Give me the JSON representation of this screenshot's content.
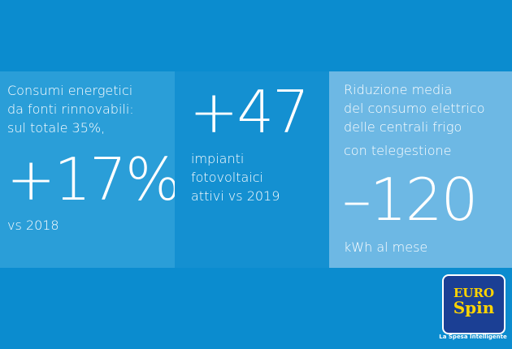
{
  "panels": [
    {
      "intro": [
        "Consumi energetici",
        "da fonti rinnovabili:",
        "sul totale 35%,"
      ],
      "figure": "+17%",
      "outro": [
        "vs 2018"
      ]
    },
    {
      "intro": [],
      "figure": "+47",
      "outro": [
        "impianti",
        "fotovoltaici",
        "attivi vs 2019"
      ]
    },
    {
      "intro": [
        "Riduzione media",
        "del consumo elettrico",
        "delle centrali frigo",
        "con telegestione"
      ],
      "figure": "–120",
      "outro": [
        "kWh al mese"
      ]
    }
  ],
  "logo": {
    "top": "EURO",
    "bottom": "Spin",
    "tagline": "La Spesa Intelligente"
  }
}
